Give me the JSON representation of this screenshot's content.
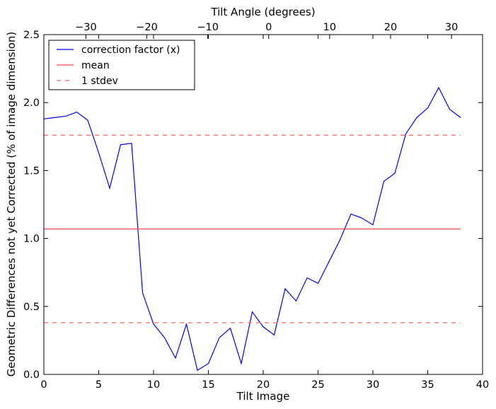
{
  "chart_data": {
    "type": "line",
    "xlabel": "Tilt Image",
    "ylabel": "Geometric Differences not yet Corrected (% of image dimension)",
    "top_xlabel": "Tilt Angle (degrees)",
    "xlim": [
      0,
      40
    ],
    "ylim": [
      0,
      2.5
    ],
    "top_xlim": [
      -36.9,
      35.1
    ],
    "xticks": [
      0,
      5,
      10,
      15,
      20,
      25,
      30,
      35,
      40
    ],
    "xtick_labels": [
      "0",
      "5",
      "10",
      "15",
      "20",
      "25",
      "30",
      "35",
      "40"
    ],
    "yticks": [
      0,
      0.5,
      1.0,
      1.5,
      2.0,
      2.5
    ],
    "ytick_labels": [
      "0.0",
      "0.5",
      "1.0",
      "1.5",
      "2.0",
      "2.5"
    ],
    "top_xticks": [
      -30,
      -20,
      -10,
      0,
      10,
      20,
      30
    ],
    "top_xtick_labels": [
      "−30",
      "−20",
      "−10",
      "0",
      "10",
      "20",
      "30"
    ],
    "grid": false,
    "legend_position": "top-left",
    "series": [
      {
        "name": "correction factor (x)",
        "color": "#0000ff",
        "style": "solid",
        "x": [
          0,
          1,
          2,
          3,
          4,
          5,
          6,
          7,
          8,
          9,
          10,
          11,
          12,
          13,
          14,
          15,
          16,
          17,
          18,
          19,
          20,
          21,
          22,
          23,
          24,
          25,
          26,
          27,
          28,
          29,
          30,
          31,
          32,
          33,
          34,
          35,
          36,
          37,
          38
        ],
        "y": [
          1.88,
          1.89,
          1.9,
          1.93,
          1.87,
          1.63,
          1.37,
          1.69,
          1.7,
          0.6,
          0.37,
          0.27,
          0.12,
          0.37,
          0.03,
          0.08,
          0.27,
          0.34,
          0.08,
          0.46,
          0.35,
          0.29,
          0.63,
          0.54,
          0.71,
          0.67,
          0.83,
          0.99,
          1.18,
          1.15,
          1.1,
          1.42,
          1.48,
          1.77,
          1.89,
          1.96,
          2.11,
          1.95,
          1.89
        ]
      },
      {
        "name": "mean",
        "color": "#ff4444",
        "style": "solid",
        "x": [
          0,
          38
        ],
        "y": [
          1.07,
          1.07
        ]
      },
      {
        "name": "1 stdev",
        "color": "#ff6666",
        "style": "dashed",
        "x": [
          0,
          38
        ],
        "y": [
          1.76,
          1.76
        ]
      },
      {
        "name": "",
        "color": "#ff6666",
        "style": "dashed",
        "x": [
          0,
          38
        ],
        "y": [
          0.38,
          0.38
        ]
      }
    ]
  }
}
